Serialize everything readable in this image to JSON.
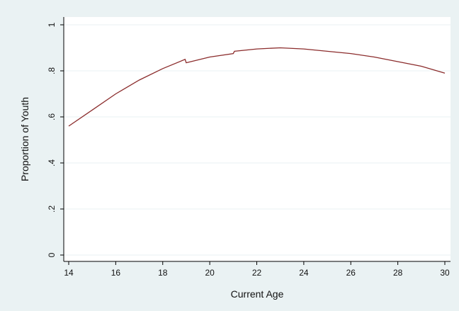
{
  "colors": {
    "page_background": "#eaf2f3",
    "plot_background": "#ffffff",
    "gridline": "#eaf2f3",
    "series_line": "#8b2c2c",
    "axis": "#000000"
  },
  "chart_data": {
    "type": "line",
    "xlabel": "Current Age",
    "ylabel": "Proportion of Youth",
    "xlim": [
      14,
      30
    ],
    "ylim": [
      0,
      1
    ],
    "x_ticks": [
      "14",
      "16",
      "18",
      "20",
      "22",
      "24",
      "26",
      "28",
      "30"
    ],
    "y_ticks": [
      "0",
      ".2",
      ".4",
      ".6",
      ".8",
      "1"
    ],
    "grid": true,
    "legend": "none",
    "series": [
      {
        "x": [
          14,
          15,
          16,
          17,
          18,
          18.95,
          19,
          20,
          21,
          21.05,
          22,
          23,
          24,
          25,
          26,
          27,
          28,
          29,
          30
        ],
        "values": [
          0.56,
          0.63,
          0.7,
          0.76,
          0.81,
          0.85,
          0.835,
          0.86,
          0.875,
          0.885,
          0.895,
          0.9,
          0.895,
          0.885,
          0.875,
          0.86,
          0.84,
          0.82,
          0.79
        ]
      }
    ]
  }
}
